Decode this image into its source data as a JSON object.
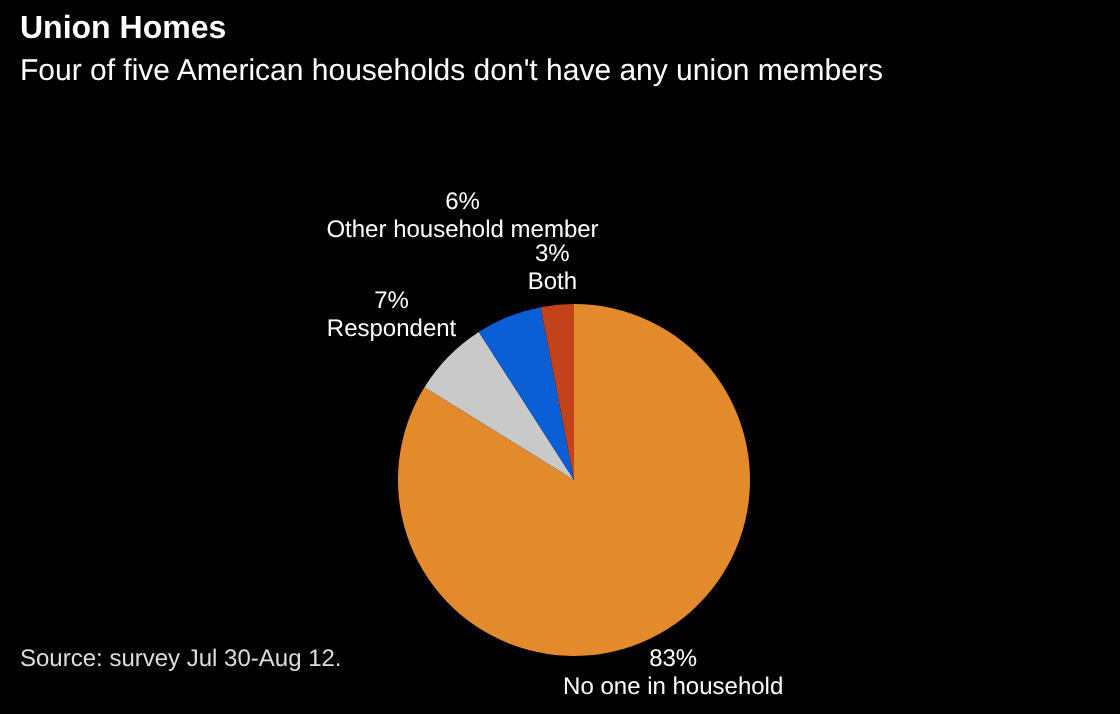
{
  "chart_data": {
    "type": "pie",
    "title": "Union Homes",
    "subtitle": "Four of five American households don't have any union members",
    "categories": [
      "No one in household",
      "Respondent",
      "Other household member",
      "Both"
    ],
    "values": [
      83,
      7,
      6,
      3
    ],
    "value_labels": [
      "83%",
      "7%",
      "6%",
      "3%"
    ],
    "colors": [
      "#e38b2c",
      "#c9c9c9",
      "#0b5fd6",
      "#c4421a"
    ],
    "annotations": [
      "Source: survey Jul 30-Aug 12."
    ]
  }
}
